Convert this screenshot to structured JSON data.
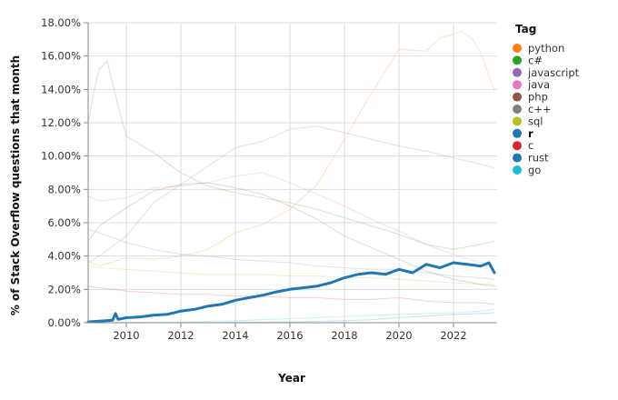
{
  "chart_data": {
    "type": "line",
    "xlabel": "Year",
    "ylabel": "% of Stack Overflow questions that month",
    "xlim": [
      2008.6,
      2023.6
    ],
    "ylim": [
      0,
      18
    ],
    "y_ticks": [
      0,
      2,
      4,
      6,
      8,
      10,
      12,
      14,
      16,
      18
    ],
    "y_tick_labels": [
      "0.00%",
      "2.00%",
      "4.00%",
      "6.00%",
      "8.00%",
      "10.00%",
      "12.00%",
      "14.00%",
      "16.00%",
      "18.00%"
    ],
    "x_ticks": [
      2010,
      2012,
      2014,
      2016,
      2018,
      2020,
      2022
    ],
    "x_tick_labels": [
      "2010",
      "2012",
      "2014",
      "2016",
      "2018",
      "2020",
      "2022"
    ],
    "grid": true,
    "highlighted_series": "r",
    "legend": {
      "title": "Tag",
      "position": "right",
      "entries": [
        {
          "label": "python",
          "color": "#ff7f0e"
        },
        {
          "label": "c#",
          "color": "#2ca02c"
        },
        {
          "label": "javascript",
          "color": "#9467bd"
        },
        {
          "label": "java",
          "color": "#e377c2"
        },
        {
          "label": "php",
          "color": "#8c564b"
        },
        {
          "label": "c++",
          "color": "#7f7f7f"
        },
        {
          "label": "sql",
          "color": "#bcbd22"
        },
        {
          "label": "r",
          "color": "#1f77b4",
          "bold": true
        },
        {
          "label": "c",
          "color": "#d62728"
        },
        {
          "label": "rust",
          "color": "#1f77b4"
        },
        {
          "label": "go",
          "color": "#17becf"
        }
      ]
    },
    "series": [
      {
        "name": "python",
        "color": "#ff7f0e",
        "x": [
          2008.6,
          2009,
          2010,
          2011,
          2012,
          2013,
          2014,
          2015,
          2016,
          2017,
          2018,
          2019,
          2020,
          2021,
          2021.5,
          2022,
          2022.3,
          2022.7,
          2023,
          2023.5
        ],
        "y": [
          3.7,
          3.4,
          3.9,
          3.8,
          4.0,
          4.4,
          5.4,
          5.9,
          6.8,
          8.3,
          11.0,
          13.8,
          16.4,
          16.3,
          17.1,
          17.3,
          17.5,
          17.0,
          16.2,
          13.9
        ]
      },
      {
        "name": "c#",
        "color": "#2ca02c",
        "x": [
          2008.6,
          2008.8,
          2009,
          2009.3,
          2009.7,
          2010,
          2011,
          2012,
          2013,
          2014,
          2015,
          2016,
          2017,
          2018,
          2019,
          2020,
          2021,
          2022,
          2023,
          2023.5
        ],
        "y": [
          12.0,
          13.8,
          15.2,
          15.7,
          13.0,
          11.2,
          10.2,
          9.0,
          8.2,
          7.8,
          7.5,
          7.2,
          6.8,
          6.3,
          5.8,
          5.3,
          4.7,
          4.4,
          4.7,
          4.9
        ]
      },
      {
        "name": "javascript",
        "color": "#9467bd",
        "x": [
          2008.6,
          2009,
          2010,
          2011,
          2012,
          2013,
          2014,
          2015,
          2016,
          2017,
          2018,
          2019,
          2020,
          2021,
          2022,
          2023,
          2023.5
        ],
        "y": [
          3.6,
          4.0,
          5.2,
          7.2,
          8.3,
          9.4,
          10.5,
          10.9,
          11.6,
          11.8,
          11.4,
          11.0,
          10.6,
          10.3,
          9.9,
          9.5,
          9.3
        ]
      },
      {
        "name": "java",
        "color": "#e377c2",
        "x": [
          2008.6,
          2009,
          2010,
          2011,
          2012,
          2013,
          2014,
          2015,
          2016,
          2017,
          2018,
          2019,
          2020,
          2021,
          2022,
          2023,
          2023.5
        ],
        "y": [
          7.6,
          7.3,
          7.5,
          8.1,
          8.2,
          8.4,
          8.8,
          9.0,
          8.4,
          7.7,
          7.0,
          6.2,
          5.5,
          4.7,
          4.1,
          3.6,
          3.4
        ]
      },
      {
        "name": "php",
        "color": "#8c564b",
        "x": [
          2008.6,
          2009,
          2010,
          2011,
          2012,
          2013,
          2014,
          2015,
          2016,
          2017,
          2018,
          2019,
          2020,
          2021,
          2022,
          2023,
          2023.5
        ],
        "y": [
          4.9,
          5.8,
          6.9,
          7.9,
          8.3,
          8.4,
          8.1,
          7.7,
          7.0,
          6.2,
          5.2,
          4.5,
          3.8,
          3.1,
          2.6,
          2.3,
          2.2
        ]
      },
      {
        "name": "c++",
        "color": "#7f7f7f",
        "x": [
          2008.6,
          2009,
          2010,
          2011,
          2012,
          2013,
          2014,
          2015,
          2016,
          2017,
          2018,
          2019,
          2020,
          2021,
          2022,
          2023,
          2023.5
        ],
        "y": [
          5.6,
          5.4,
          4.8,
          4.4,
          4.1,
          4.0,
          3.8,
          3.7,
          3.6,
          3.4,
          3.3,
          3.2,
          3.2,
          3.0,
          2.8,
          2.7,
          2.6
        ]
      },
      {
        "name": "sql",
        "color": "#bcbd22",
        "x": [
          2008.6,
          2009,
          2010,
          2011,
          2012,
          2013,
          2014,
          2015,
          2016,
          2017,
          2018,
          2019,
          2020,
          2021,
          2022,
          2023,
          2023.5
        ],
        "y": [
          3.4,
          3.3,
          3.2,
          3.1,
          3.0,
          2.9,
          2.9,
          2.9,
          2.8,
          2.8,
          2.7,
          2.7,
          2.6,
          2.5,
          2.4,
          2.3,
          2.3
        ]
      },
      {
        "name": "r",
        "color": "#1f77b4",
        "highlight": true,
        "x": [
          2008.6,
          2009,
          2009.5,
          2009.6,
          2009.7,
          2010,
          2010.5,
          2011,
          2011.5,
          2012,
          2012.5,
          2013,
          2013.5,
          2014,
          2014.5,
          2015,
          2015.5,
          2016,
          2016.5,
          2017,
          2017.5,
          2018,
          2018.5,
          2019,
          2019.5,
          2020,
          2020.5,
          2021,
          2021.5,
          2022,
          2022.5,
          2023,
          2023.3,
          2023.5
        ],
        "y": [
          0.05,
          0.1,
          0.15,
          0.55,
          0.2,
          0.3,
          0.35,
          0.45,
          0.5,
          0.7,
          0.8,
          1.0,
          1.1,
          1.35,
          1.5,
          1.65,
          1.85,
          2.0,
          2.1,
          2.2,
          2.4,
          2.7,
          2.9,
          3.0,
          2.9,
          3.2,
          3.0,
          3.5,
          3.3,
          3.6,
          3.5,
          3.4,
          3.6,
          3.0
        ]
      },
      {
        "name": "c",
        "color": "#d62728",
        "x": [
          2008.6,
          2009,
          2010,
          2011,
          2012,
          2013,
          2014,
          2015,
          2016,
          2017,
          2018,
          2019,
          2020,
          2021,
          2022,
          2023,
          2023.5
        ],
        "y": [
          2.2,
          2.1,
          1.9,
          1.8,
          1.7,
          1.7,
          1.6,
          1.6,
          1.5,
          1.5,
          1.4,
          1.4,
          1.5,
          1.3,
          1.2,
          1.2,
          1.1
        ]
      },
      {
        "name": "rust",
        "color": "#1f77b4",
        "x": [
          2008.6,
          2010,
          2012,
          2014,
          2015,
          2016,
          2017,
          2018,
          2019,
          2020,
          2021,
          2022,
          2023,
          2023.5
        ],
        "y": [
          0.0,
          0.0,
          0.0,
          0.01,
          0.03,
          0.05,
          0.08,
          0.12,
          0.18,
          0.3,
          0.4,
          0.5,
          0.55,
          0.6
        ]
      },
      {
        "name": "go",
        "color": "#17becf",
        "x": [
          2008.6,
          2010,
          2011,
          2012,
          2013,
          2014,
          2015,
          2016,
          2017,
          2018,
          2019,
          2020,
          2021,
          2022,
          2023,
          2023.5
        ],
        "y": [
          0.0,
          0.01,
          0.02,
          0.04,
          0.08,
          0.12,
          0.18,
          0.25,
          0.3,
          0.38,
          0.45,
          0.5,
          0.55,
          0.6,
          0.7,
          0.8
        ]
      }
    ]
  }
}
